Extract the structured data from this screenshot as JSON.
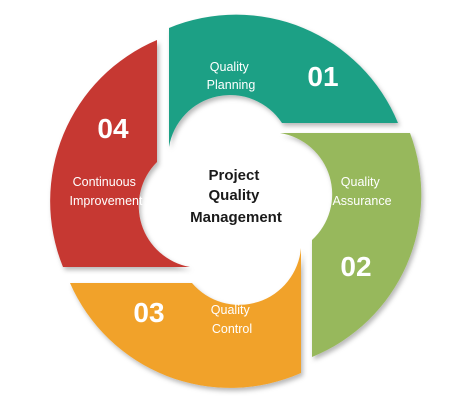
{
  "diagram": {
    "center": {
      "lines": [
        "Project",
        "Quality",
        "Management"
      ]
    },
    "segments": [
      {
        "number": "01",
        "lines": [
          "Quality",
          "Planning"
        ],
        "color": "#1fa085"
      },
      {
        "number": "02",
        "lines": [
          "Quality",
          "Assurance"
        ],
        "color": "#97b85b"
      },
      {
        "number": "03",
        "lines": [
          "Quality",
          "Control"
        ],
        "color": "#f1a22a"
      },
      {
        "number": "04",
        "lines": [
          "Continuous",
          "Improvement"
        ],
        "color": "#c63733"
      }
    ],
    "colors": {
      "background": "#ffffff",
      "center_fill": "#ffffff",
      "center_text": "#1a1a1a",
      "segment_text": "#ffffff"
    }
  }
}
